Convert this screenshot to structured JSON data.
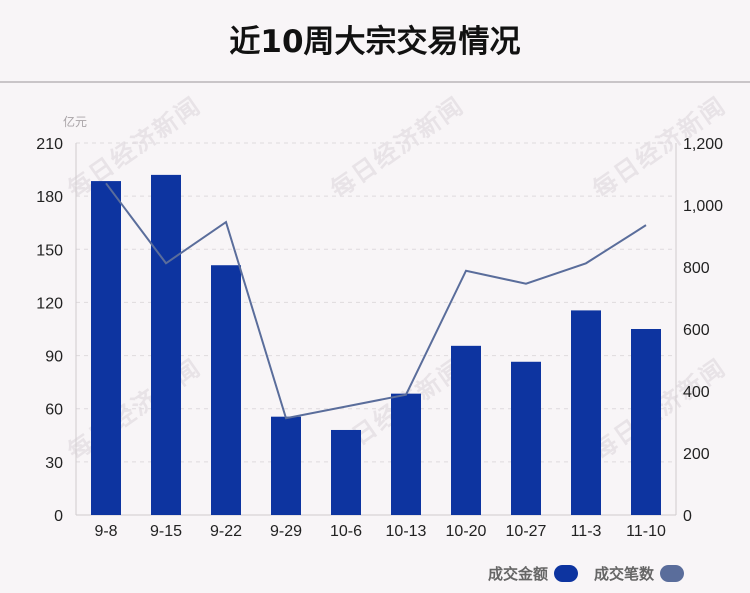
{
  "title": "近10周大宗交易情况",
  "watermark": "每日经济新闻",
  "chart_data": {
    "type": "bar",
    "unit_label": "亿元",
    "categories": [
      "9-8",
      "9-15",
      "9-22",
      "9-29",
      "10-6",
      "10-13",
      "10-20",
      "10-27",
      "11-3",
      "11-10"
    ],
    "series": [
      {
        "name": "成交金额",
        "type": "bar",
        "axis": "left",
        "color": "#0d34a0",
        "values": [
          188.5,
          192,
          141,
          55.5,
          48,
          68.5,
          95.5,
          86.5,
          115.5,
          105
        ]
      },
      {
        "name": "成交笔数",
        "type": "line",
        "axis": "right",
        "color": "#5a6d9b",
        "values": [
          1070,
          812,
          945,
          312,
          350,
          388,
          788,
          746,
          812,
          935
        ]
      }
    ],
    "y_left": {
      "lim": [
        0,
        210
      ],
      "ticks": [
        "0",
        "30",
        "60",
        "90",
        "120",
        "150",
        "180",
        "210"
      ]
    },
    "y_right": {
      "lim": [
        0,
        1200
      ],
      "ticks": [
        "0",
        "200",
        "400",
        "600",
        "800",
        "1,000",
        "1,200"
      ]
    },
    "grid": true,
    "legend_position": "bottom-right"
  }
}
